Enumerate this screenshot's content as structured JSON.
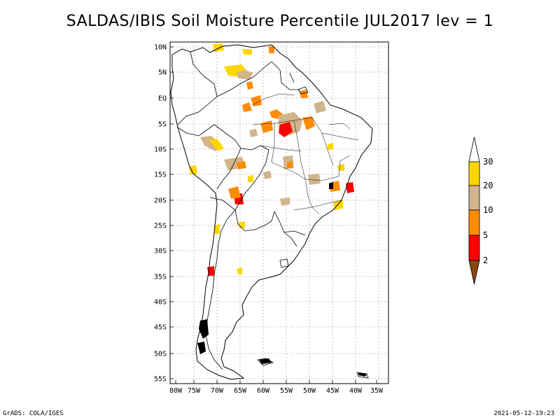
{
  "title": "SALDAS/IBIS Soil Moisture Percentile JUL2017 lev = 1",
  "map": {
    "lon_labels": [
      "80W",
      "75W",
      "70W",
      "65W",
      "60W",
      "55W",
      "50W",
      "45W",
      "40W",
      "35W"
    ],
    "lat_labels": [
      "10N",
      "5N",
      "EQ",
      "5S",
      "10S",
      "15S",
      "20S",
      "25S",
      "30S",
      "35S",
      "40S",
      "45S",
      "50S",
      "55S"
    ],
    "grid": true
  },
  "colorbar": {
    "levels": [
      "2",
      "5",
      "10",
      "20",
      "30"
    ],
    "colors": {
      "below_2": "#8b4513",
      "2_5": "#ff0000",
      "5_10": "#ff8c00",
      "10_20": "#d2b48c",
      "20_30": "#ffd700",
      "above_30": "#ffffff"
    }
  },
  "footer": {
    "left": "GrADS: COLA/IGES",
    "right": "2021-05-12-19:23"
  }
}
